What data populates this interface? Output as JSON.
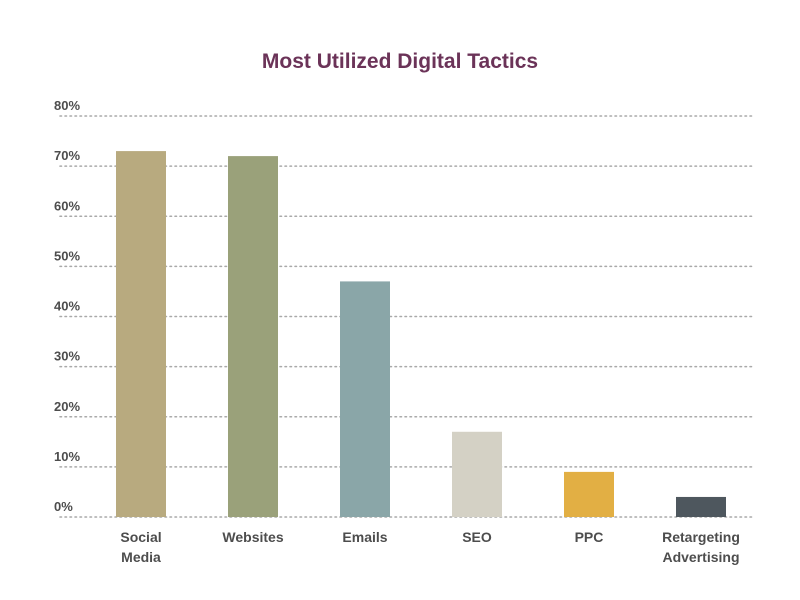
{
  "chart_data": {
    "type": "bar",
    "title": "Most Utilized Digital Tactics",
    "xlabel": "",
    "ylabel": "",
    "categories": [
      "Social Media",
      "Websites",
      "Emails",
      "SEO",
      "PPC",
      "Retargeting Advertising"
    ],
    "category_lines": [
      [
        "Social",
        "Media"
      ],
      [
        "Websites"
      ],
      [
        "Emails"
      ],
      [
        "SEO"
      ],
      [
        "PPC"
      ],
      [
        "Retargeting",
        "Advertising"
      ]
    ],
    "values": [
      73,
      72,
      47,
      17,
      9,
      4
    ],
    "colors": [
      "#b8aa7f",
      "#9aa17a",
      "#8aa6a8",
      "#d4d1c5",
      "#e2af44",
      "#4e575e"
    ],
    "ylim": [
      0,
      80
    ],
    "yticks": [
      "0%",
      "10%",
      "20%",
      "30%",
      "40%",
      "50%",
      "60%",
      "70%",
      "80%"
    ],
    "ytick_values": [
      0,
      10,
      20,
      30,
      40,
      50,
      60,
      70,
      80
    ],
    "grid": true,
    "grid_style": "dotted",
    "legend": "none"
  }
}
